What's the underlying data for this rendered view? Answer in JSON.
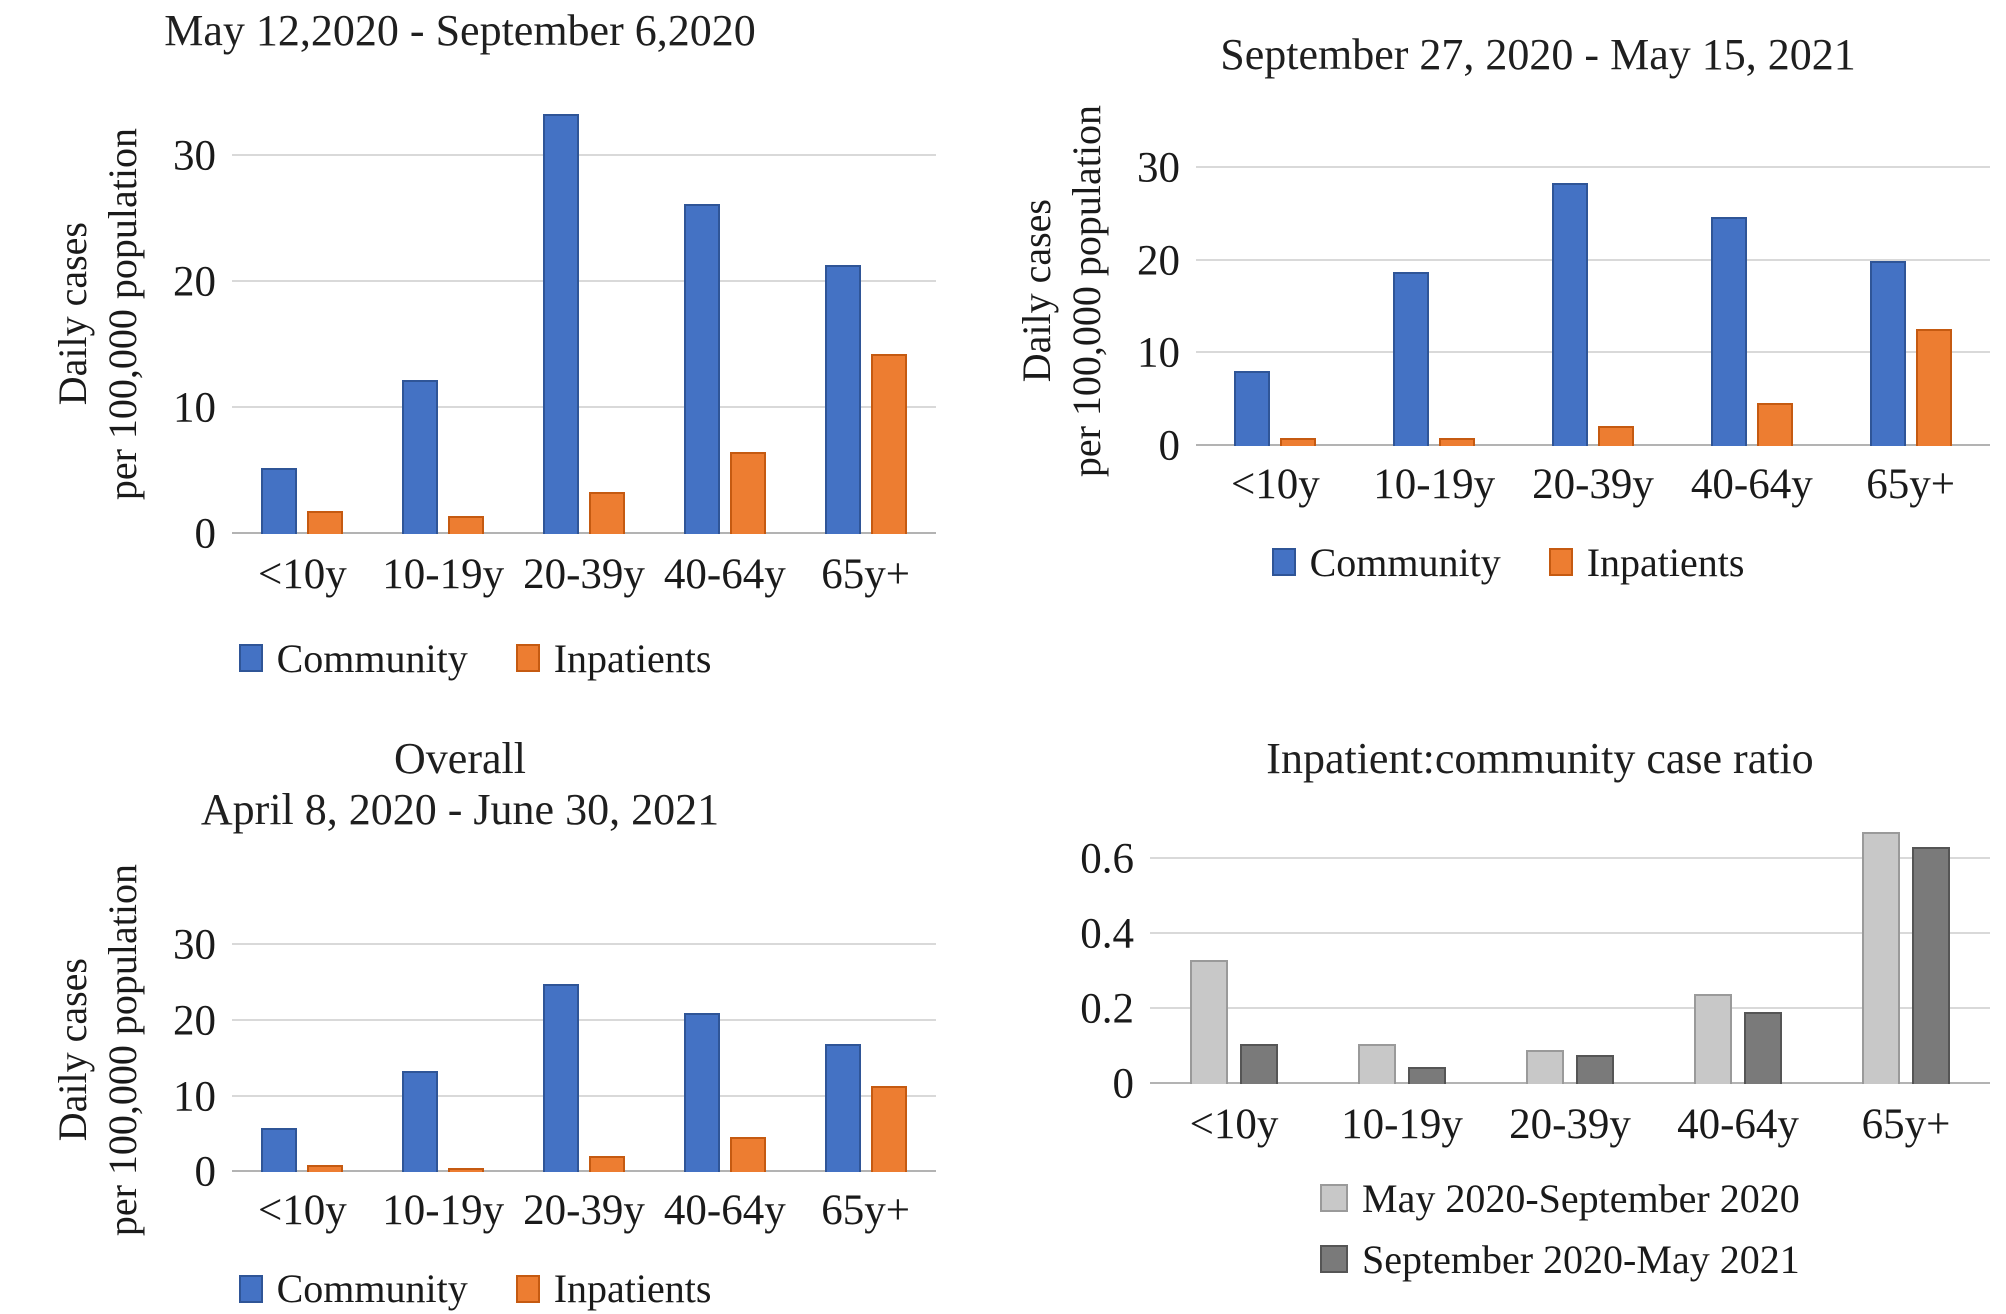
{
  "figure": {
    "background": "#ffffff",
    "text_color": "#1a1a1a",
    "gridline_color": "#d9d9d9",
    "axis_color": "#b3b3b3"
  },
  "chart_data": [
    {
      "id": "wave1",
      "type": "bar",
      "title_lines": [
        "May 12,2020 - September 6,2020"
      ],
      "ylabel_lines": [
        "Daily cases",
        "per 100,000 population"
      ],
      "categories": [
        "<10y",
        "10-19y",
        "20-39y",
        "40-64y",
        "65y+"
      ],
      "series": [
        {
          "name": "Community",
          "color": "#4472C4",
          "border": "#2f5597",
          "values": [
            5.2,
            12.2,
            33.4,
            26.2,
            21.4
          ]
        },
        {
          "name": "Inpatients",
          "color": "#ED7D31",
          "border": "#c55a11",
          "values": [
            1.8,
            1.4,
            3.3,
            6.5,
            14.3
          ]
        }
      ],
      "ylim": [
        0,
        35
      ],
      "yticks": [
        "0",
        "10",
        "20",
        "30"
      ],
      "grid": true,
      "legend_position": "bottom",
      "legend_layout": "row"
    },
    {
      "id": "wave2",
      "type": "bar",
      "title_lines": [
        "September 27, 2020 - May 15, 2021"
      ],
      "ylabel_lines": [
        "Daily cases",
        "per 100,000 population"
      ],
      "categories": [
        "<10y",
        "10-19y",
        "20-39y",
        "40-64y",
        "65y+"
      ],
      "series": [
        {
          "name": "Community",
          "color": "#4472C4",
          "border": "#2f5597",
          "values": [
            8.1,
            18.8,
            28.4,
            24.7,
            20.0
          ]
        },
        {
          "name": "Inpatients",
          "color": "#ED7D31",
          "border": "#c55a11",
          "values": [
            0.8,
            0.8,
            2.1,
            4.6,
            12.6
          ]
        }
      ],
      "ylim": [
        0,
        33.5
      ],
      "yticks": [
        "0",
        "10",
        "20",
        "30"
      ],
      "grid": true,
      "legend_position": "bottom",
      "legend_layout": "row"
    },
    {
      "id": "overall",
      "type": "bar",
      "title_lines": [
        "Overall",
        "April 8, 2020 - June 30, 2021"
      ],
      "ylabel_lines": [
        "Daily cases",
        "per 100,000 population"
      ],
      "categories": [
        "<10y",
        "10-19y",
        "20-39y",
        "40-64y",
        "65y+"
      ],
      "series": [
        {
          "name": "Community",
          "color": "#4472C4",
          "border": "#2f5597",
          "values": [
            5.8,
            13.4,
            24.9,
            21.0,
            17.0
          ]
        },
        {
          "name": "Inpatients",
          "color": "#ED7D31",
          "border": "#c55a11",
          "values": [
            0.9,
            0.6,
            2.1,
            4.7,
            11.4
          ]
        }
      ],
      "ylim": [
        0,
        32.4
      ],
      "yticks": [
        "0",
        "10",
        "20",
        "30"
      ],
      "grid": true,
      "legend_position": "bottom",
      "legend_layout": "row"
    },
    {
      "id": "ratio",
      "type": "bar",
      "title_lines": [
        "Inpatient:community case ratio"
      ],
      "ylabel_lines": [],
      "categories": [
        "<10y",
        "10-19y",
        "20-39y",
        "40-64y",
        "65y+"
      ],
      "series": [
        {
          "name": "May 2020-September 2020",
          "color": "#C8C8C8",
          "border": "#9a9a9a",
          "values": [
            0.33,
            0.105,
            0.09,
            0.24,
            0.67
          ]
        },
        {
          "name": "September 2020-May 2021",
          "color": "#7A7A7A",
          "border": "#555555",
          "values": [
            0.105,
            0.045,
            0.075,
            0.19,
            0.63
          ]
        }
      ],
      "ylim": [
        0,
        0.707
      ],
      "yticks": [
        "0",
        "0.2",
        "0.4",
        "0.6"
      ],
      "grid": true,
      "legend_position": "bottom",
      "legend_layout": "column"
    }
  ]
}
